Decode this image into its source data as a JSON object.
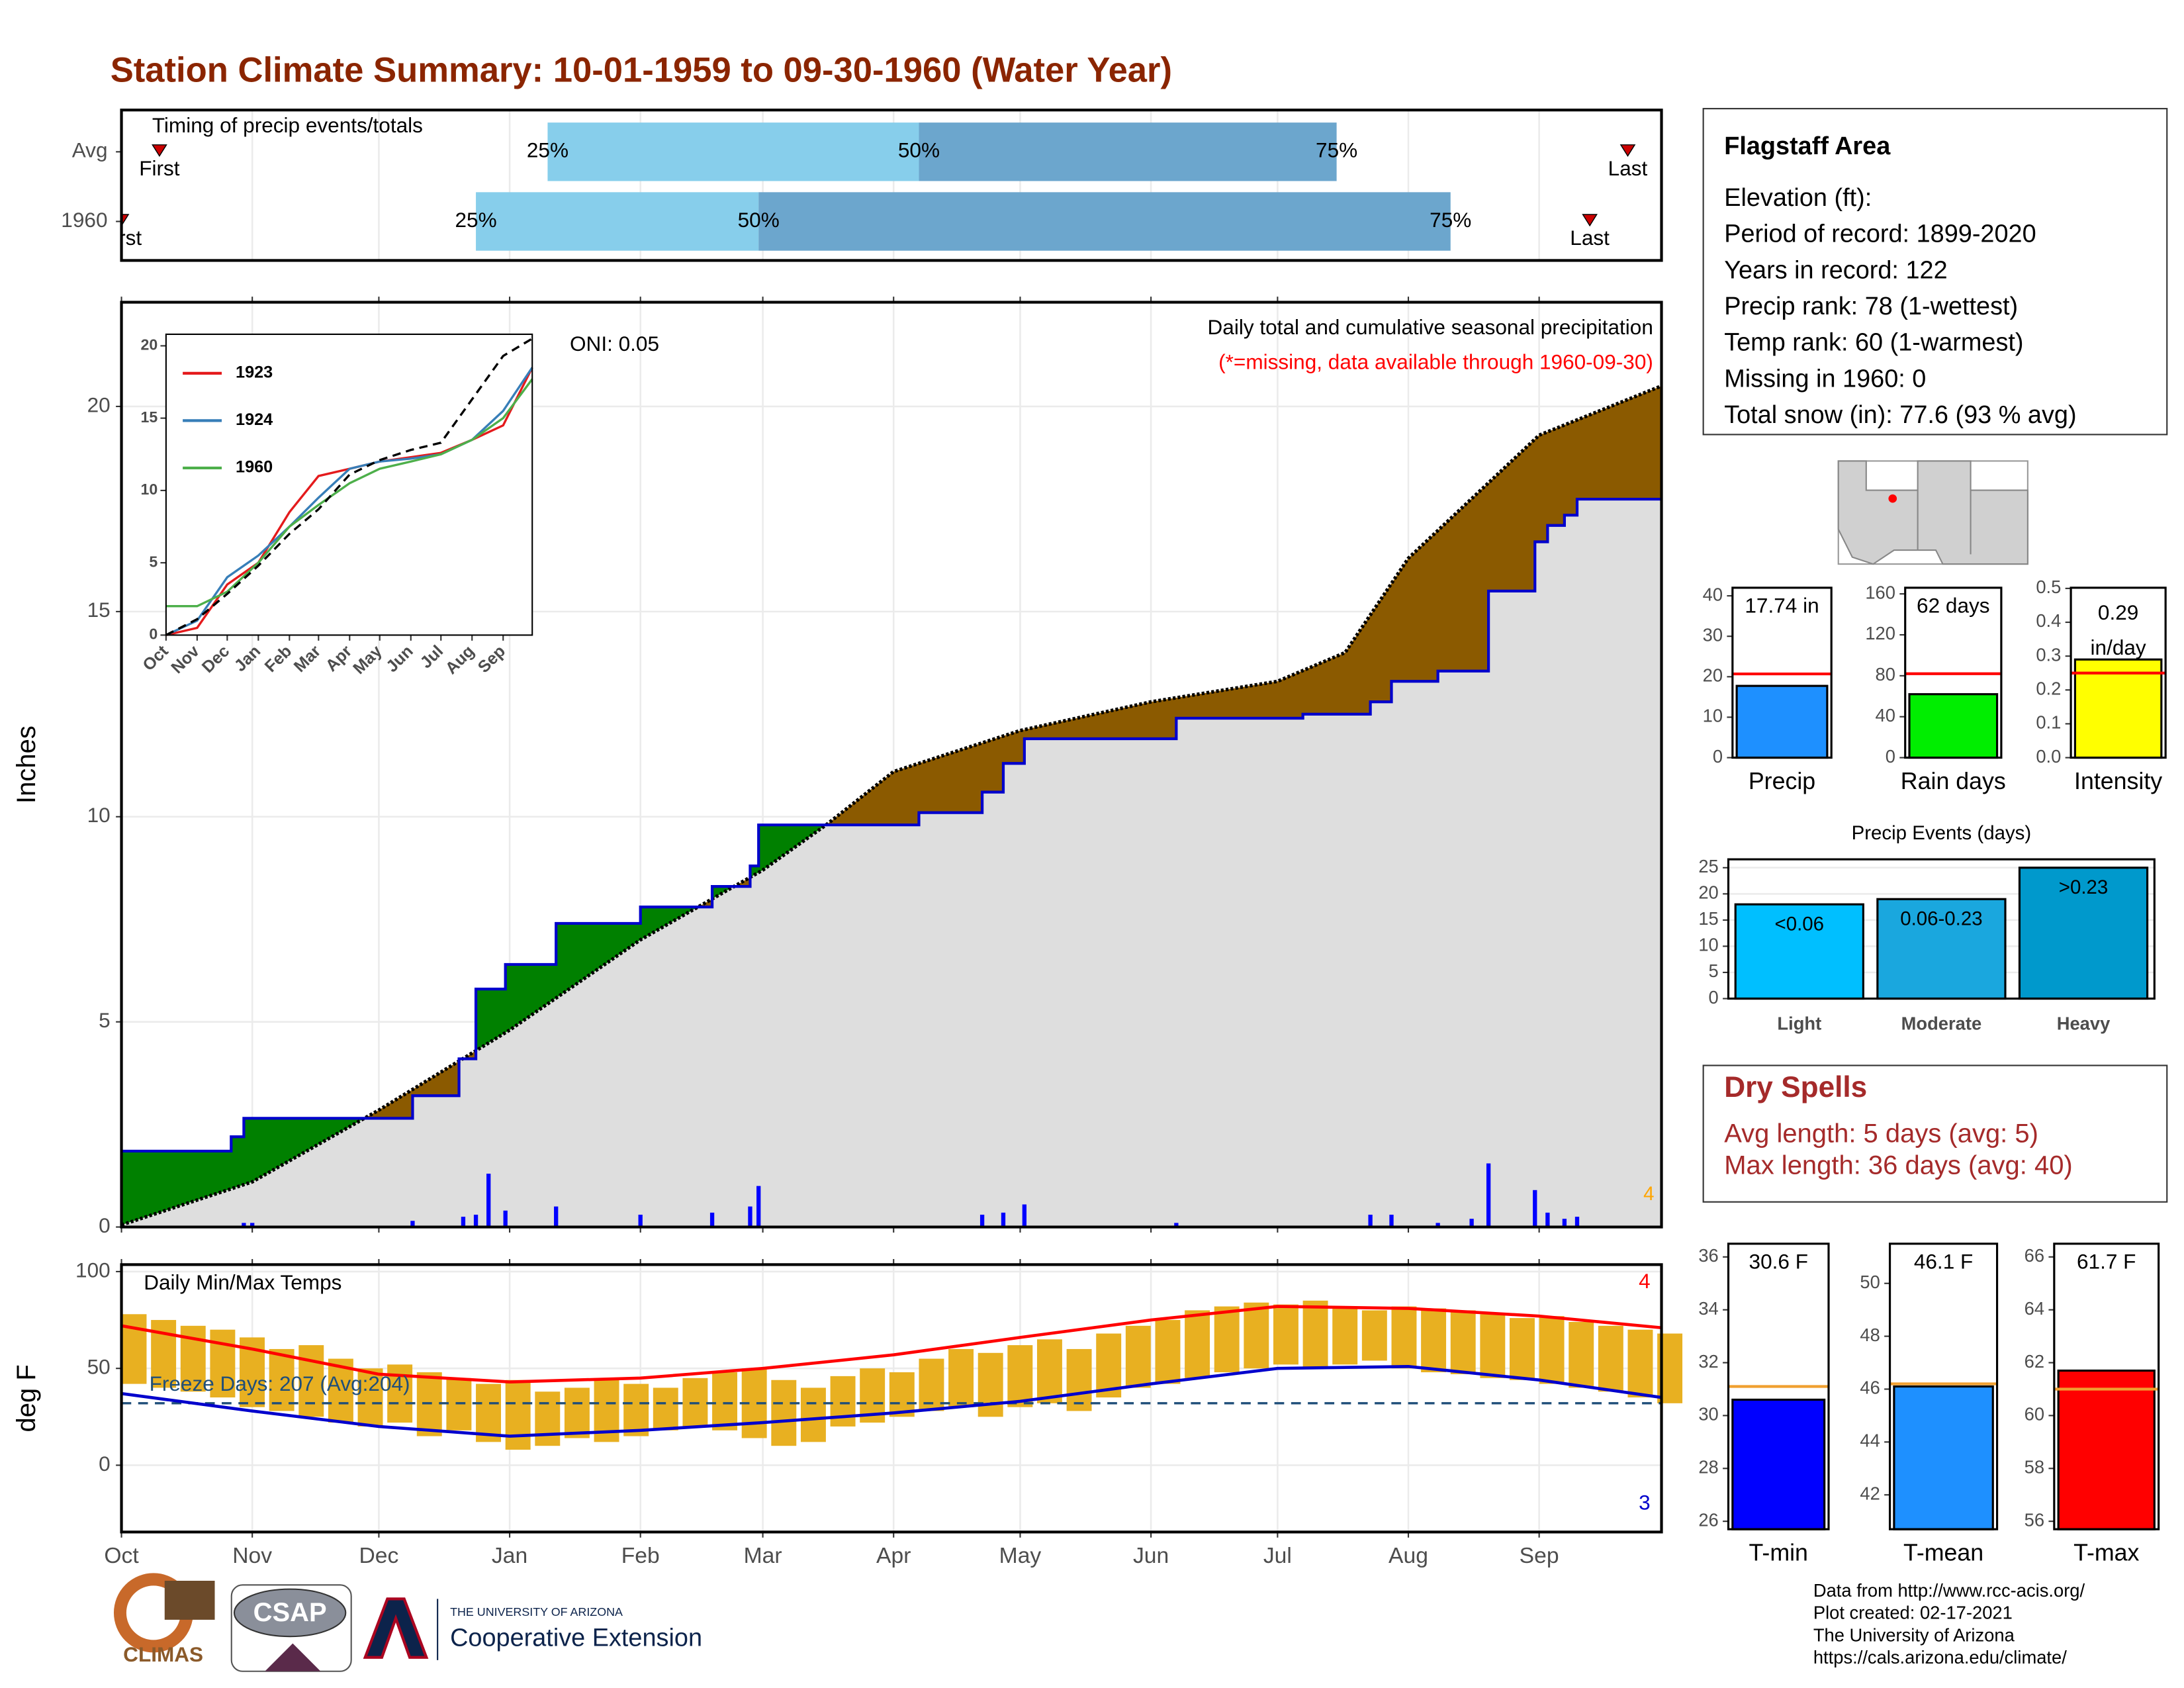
{
  "header": {
    "title": "Station Climate Summary: 10-01-1959 to 09-30-1960 (Water Year)"
  },
  "chart_data": [
    {
      "type": "timing",
      "subtitle": "Timing of precip events/totals",
      "xlim": [
        0,
        365
      ],
      "grid": true,
      "rows": [
        {
          "name": "Avg",
          "first": 9,
          "p25": 101,
          "p50": 189,
          "p75": 288,
          "last": 357
        },
        {
          "name": "1960",
          "first": 0,
          "p25": 84,
          "p50": 151,
          "p75": 315,
          "last": 348
        }
      ],
      "labels": {
        "first": "First",
        "p25": "25%",
        "p50": "50%",
        "p75": "75%",
        "last": "Last"
      },
      "colors": {
        "early": "#87ceeb",
        "late": "#6ca6cd",
        "marker": "#cc0000"
      }
    },
    {
      "type": "cumulative",
      "title": "Daily total and cumulative seasonal precipitation",
      "subtitle": "(*=missing, data available through 1960-09-30)",
      "annotation": "ONI: 0.05",
      "ylabel": "Inches",
      "count_label": "4",
      "xlim": [
        0,
        365
      ],
      "xticks": [
        0,
        31,
        61,
        92,
        123,
        152,
        183,
        213,
        244,
        274,
        305,
        336
      ],
      "ylim": [
        0,
        22.54
      ],
      "yticks": [
        0,
        5,
        10,
        15,
        20
      ],
      "grid": true,
      "series": [
        {
          "x": [
            0,
            26,
            29,
            69,
            80,
            84,
            91,
            103,
            123,
            140,
            149,
            151,
            189,
            204,
            209,
            214,
            250,
            280,
            296,
            301,
            312,
            324,
            335,
            338,
            342,
            345,
            365
          ],
          "values": [
            1.85,
            2.2,
            2.65,
            3.2,
            4.1,
            5.8,
            6.4,
            7.4,
            7.8,
            8.3,
            8.8,
            9.8,
            10.1,
            10.6,
            11.3,
            11.9,
            12.4,
            12.5,
            12.8,
            13.3,
            13.55,
            15.5,
            16.7,
            17.1,
            17.35,
            17.74,
            17.74
          ],
          "color": "#0000cc",
          "step": true
        },
        {
          "x": [
            0,
            31,
            61,
            92,
            123,
            152,
            167,
            183,
            213,
            244,
            274,
            290,
            305,
            336,
            365
          ],
          "values": [
            0.05,
            1.1,
            2.85,
            4.8,
            7.0,
            8.7,
            9.8,
            11.1,
            12.1,
            12.8,
            13.3,
            14.0,
            16.3,
            19.3,
            20.5
          ],
          "color": "#000000"
        }
      ],
      "bars": {
        "x": [
          29,
          31,
          69,
          81,
          84,
          87,
          91,
          103,
          123,
          140,
          149,
          151,
          204,
          209,
          214,
          250,
          296,
          301,
          312,
          320,
          324,
          335,
          338,
          342,
          345
        ],
        "values": [
          0.1,
          0.1,
          0.15,
          0.25,
          0.3,
          1.3,
          0.4,
          0.5,
          0.3,
          0.35,
          0.5,
          1.0,
          0.3,
          0.35,
          0.55,
          0.1,
          0.3,
          0.3,
          0.1,
          0.2,
          1.55,
          0.9,
          0.35,
          0.2,
          0.25
        ],
        "color": "#0000ff"
      },
      "fill_colors": {
        "above": "#008000",
        "below": "#8b5a00",
        "base": "#dedede"
      }
    },
    {
      "type": "line",
      "xlim": [
        0,
        365
      ],
      "ylim": [
        0,
        20.8
      ],
      "yticks": [
        0,
        5,
        10,
        15,
        20
      ],
      "legend": "top-left",
      "xticks": [
        {
          "value": 0,
          "label": "Oct"
        },
        {
          "value": 31,
          "label": "Nov"
        },
        {
          "value": 61,
          "label": "Dec"
        },
        {
          "value": 92,
          "label": "Jan"
        },
        {
          "value": 123,
          "label": "Feb"
        },
        {
          "value": 152,
          "label": "Mar"
        },
        {
          "value": 183,
          "label": "Apr"
        },
        {
          "value": 213,
          "label": "May"
        },
        {
          "value": 244,
          "label": "Jun"
        },
        {
          "value": 274,
          "label": "Jul"
        },
        {
          "value": 305,
          "label": "Aug"
        },
        {
          "value": 336,
          "label": "Sep"
        }
      ],
      "x": [
        0,
        31,
        61,
        92,
        123,
        152,
        183,
        213,
        244,
        274,
        305,
        336,
        365
      ],
      "series": [
        {
          "name": "1923",
          "color": "#e41a1c",
          "values": [
            0,
            0.5,
            3.5,
            5,
            8.5,
            11,
            11.5,
            12,
            12.3,
            12.6,
            13.5,
            14.5,
            18.5
          ]
        },
        {
          "name": "1924",
          "color": "#377eb8",
          "values": [
            0,
            1,
            4,
            5.5,
            7.5,
            9.5,
            11.5,
            12,
            12.2,
            12.5,
            13.5,
            15.5,
            18.5
          ]
        },
        {
          "name": "1960",
          "color": "#4daf4a",
          "values": [
            2,
            2,
            3,
            5,
            7.5,
            9,
            10.5,
            11.5,
            12,
            12.5,
            13.5,
            15,
            17.7
          ]
        },
        {
          "color": "#000000",
          "dashed": true,
          "values": [
            0,
            1.1,
            2.85,
            4.8,
            7,
            8.7,
            11.1,
            12.1,
            12.8,
            13.3,
            16.3,
            19.3,
            20.5
          ]
        }
      ]
    },
    {
      "type": "temperature",
      "title": "Daily Min/Max Temps",
      "annotation": "Freeze Days: 207 (Avg:204)",
      "ylabel": "deg F",
      "max_count_label": "4",
      "min_count_label": "3",
      "freeze": 32,
      "xlim": [
        0,
        365
      ],
      "ylim": [
        -34.5,
        103.6
      ],
      "yticks": [
        0,
        50,
        100
      ],
      "grid": true,
      "xticks": [
        {
          "value": 0,
          "label": "Oct"
        },
        {
          "value": 31,
          "label": "Nov"
        },
        {
          "value": 61,
          "label": "Dec"
        },
        {
          "value": 92,
          "label": "Jan"
        },
        {
          "value": 123,
          "label": "Feb"
        },
        {
          "value": 152,
          "label": "Mar"
        },
        {
          "value": 183,
          "label": "Apr"
        },
        {
          "value": 213,
          "label": "May"
        },
        {
          "value": 244,
          "label": "Jun"
        },
        {
          "value": 274,
          "label": "Jul"
        },
        {
          "value": 305,
          "label": "Aug"
        },
        {
          "value": 336,
          "label": "Sep"
        }
      ],
      "daily": {
        "x": [
          0,
          7,
          14,
          21,
          28,
          35,
          42,
          49,
          56,
          63,
          70,
          77,
          84,
          91,
          98,
          105,
          112,
          119,
          126,
          133,
          140,
          147,
          154,
          161,
          168,
          175,
          182,
          189,
          196,
          203,
          210,
          217,
          224,
          231,
          238,
          245,
          252,
          259,
          266,
          273,
          280,
          287,
          294,
          301,
          308,
          315,
          322,
          329,
          336,
          343,
          350,
          357,
          364
        ],
        "max": [
          78,
          75,
          72,
          70,
          66,
          60,
          62,
          55,
          50,
          52,
          48,
          45,
          42,
          44,
          38,
          40,
          45,
          42,
          40,
          45,
          48,
          50,
          44,
          40,
          46,
          50,
          48,
          55,
          60,
          58,
          62,
          65,
          60,
          68,
          72,
          75,
          80,
          82,
          84,
          83,
          85,
          82,
          80,
          82,
          81,
          80,
          78,
          76,
          77,
          74,
          72,
          70,
          68
        ],
        "min": [
          42,
          40,
          38,
          35,
          30,
          28,
          25,
          22,
          20,
          22,
          15,
          18,
          12,
          8,
          10,
          14,
          12,
          15,
          18,
          20,
          18,
          14,
          10,
          12,
          20,
          22,
          25,
          28,
          30,
          25,
          30,
          32,
          28,
          35,
          40,
          42,
          45,
          48,
          50,
          52,
          50,
          52,
          54,
          50,
          48,
          47,
          45,
          44,
          42,
          40,
          38,
          35,
          32
        ],
        "color": "#e8b021"
      },
      "avg_max": {
        "x": [
          0,
          31,
          61,
          92,
          123,
          152,
          183,
          213,
          244,
          274,
          305,
          336,
          365
        ],
        "values": [
          72,
          60,
          47,
          43,
          45,
          50,
          57,
          66,
          75,
          82,
          81,
          77,
          71
        ],
        "color": "#ff0000"
      },
      "avg_min": {
        "x": [
          0,
          31,
          61,
          92,
          123,
          152,
          183,
          213,
          244,
          274,
          305,
          336,
          365
        ],
        "values": [
          37,
          28,
          20,
          15,
          18,
          22,
          27,
          33,
          42,
          50,
          51,
          44,
          35
        ],
        "color": "#0000cc"
      },
      "freeze_color": "#1f4e79"
    },
    {
      "type": "bar",
      "categories": [
        "Precip"
      ],
      "values": [
        17.74
      ],
      "value_labels": [
        "17.74 in"
      ],
      "average": 20.7,
      "color": "#1e90ff",
      "average_color": "#ff0000",
      "ylim": [
        0,
        42
      ],
      "yticks": [
        0,
        10,
        20,
        30,
        40
      ]
    },
    {
      "type": "bar",
      "categories": [
        "Rain days"
      ],
      "values": [
        62
      ],
      "value_labels": [
        "62 days"
      ],
      "average": 82,
      "color": "#00ee00",
      "average_color": "#ff0000",
      "ylim": [
        0,
        166
      ],
      "yticks": [
        0,
        40,
        80,
        120,
        160
      ]
    },
    {
      "type": "bar",
      "categories": [
        "Intensity"
      ],
      "values": [
        0.29
      ],
      "value_unit": "in/day",
      "average": 0.25,
      "color": "#ffff00",
      "average_color": "#ff0000",
      "ylim": [
        0,
        0.502
      ],
      "yticks": [
        {
          "value": 0,
          "label": "0.0"
        },
        0.1,
        0.2,
        0.3,
        0.4,
        0.5
      ]
    },
    {
      "type": "bar",
      "title": "Precip Events (days)",
      "categories": [
        "Light",
        "Moderate",
        "Heavy"
      ],
      "values": [
        18,
        19,
        25
      ],
      "value_labels": [
        "<0.06",
        "0.06-0.23",
        ">0.23"
      ],
      "colors": [
        "#00bfff",
        "#1aa7de",
        "#0099cc"
      ],
      "ylim": [
        0,
        26.6
      ],
      "yticks": [
        0,
        5,
        10,
        15,
        20,
        25
      ],
      "grid": true
    },
    {
      "type": "bar",
      "categories": [
        "T-min"
      ],
      "values": [
        30.6
      ],
      "value_labels": [
        "30.6 F"
      ],
      "average": 31.1,
      "color": "#0000ff",
      "average_color": "#f0a030",
      "ylim": [
        25.7,
        36.5
      ],
      "yticks": [
        26,
        28,
        30,
        32,
        34,
        36
      ]
    },
    {
      "type": "bar",
      "categories": [
        "T-mean"
      ],
      "values": [
        46.1
      ],
      "value_labels": [
        "46.1 F"
      ],
      "average": 46.2,
      "color": "#1e90ff",
      "average_color": "#f0a030",
      "ylim": [
        40.7,
        51.5
      ],
      "yticks": [
        42,
        44,
        46,
        48,
        50
      ]
    },
    {
      "type": "bar",
      "categories": [
        "T-max"
      ],
      "values": [
        61.7
      ],
      "value_labels": [
        "61.7 F"
      ],
      "average": 61.0,
      "color": "#ff0000",
      "average_color": "#f0a030",
      "ylim": [
        55.7,
        66.5
      ],
      "yticks": [
        56,
        58,
        60,
        62,
        64,
        66
      ]
    }
  ],
  "info": {
    "title": "Flagstaff Area",
    "lines": [
      "Elevation (ft):",
      "Period of record: 1899-2020",
      "Years in record: 122",
      "Precip rank: 78 (1-wettest)",
      "Temp rank: 60 (1-warmest)",
      "Missing in 1960: 0",
      "Total snow (in): 77.6 (93 % avg)"
    ]
  },
  "dry_spells": {
    "title": "Dry Spells",
    "lines": [
      "Avg length: 5 days (avg: 5)",
      "Max length: 36 days (avg: 40)"
    ]
  },
  "footer": {
    "climas": "CLIMAS",
    "csap": "CSAP",
    "university": "THE UNIVERSITY OF ARIZONA",
    "extension": "Cooperative Extension",
    "credits": [
      "Data from http://www.rcc-acis.org/",
      "Plot created: 02-17-2021",
      "The University of Arizona",
      "https://cals.arizona.edu/climate/"
    ]
  }
}
